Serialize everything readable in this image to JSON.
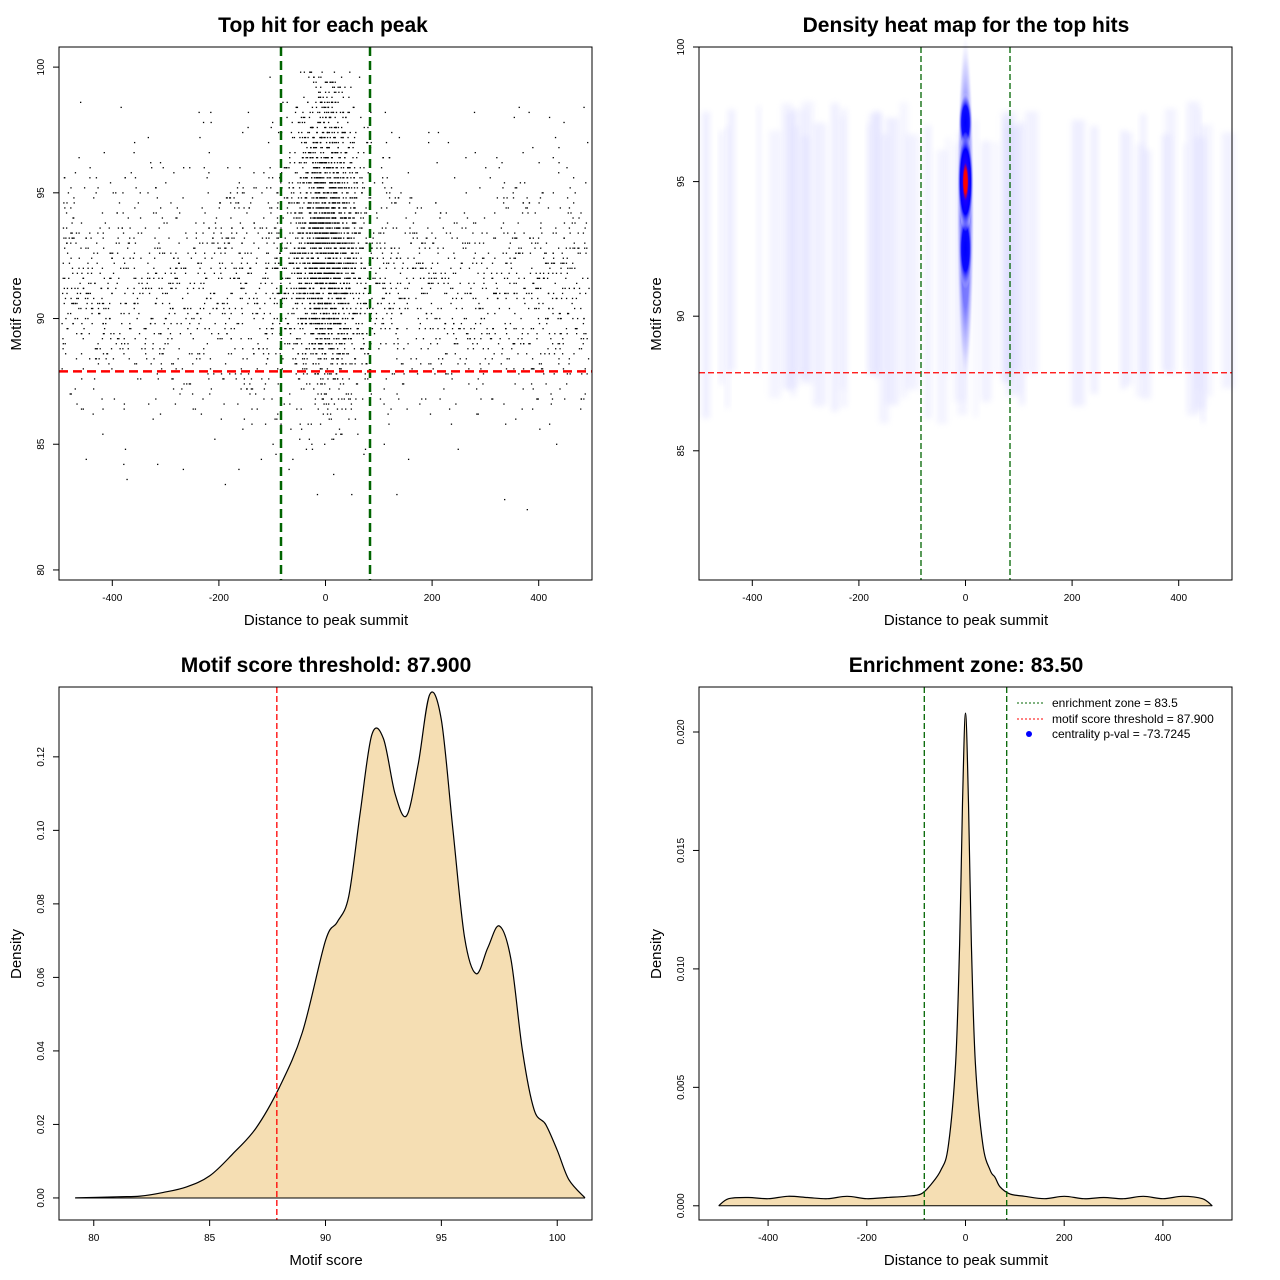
{
  "chart_data": [
    {
      "id": "scatter",
      "type": "scatter",
      "title": "Top hit for each peak",
      "xlabel": "Distance to peak summit",
      "ylabel": "Motif score",
      "xlim": [
        -500,
        500
      ],
      "ylim": [
        79.6,
        100.8
      ],
      "xticks": [
        -400,
        -200,
        0,
        200,
        400
      ],
      "yticks": [
        80,
        85,
        90,
        95,
        100
      ],
      "vlines": [
        -83.5,
        83.5
      ],
      "vline_color": "#006400",
      "hline": 87.9,
      "hline_color": "#ff0000",
      "point_color": "#000000",
      "description_of_points": "approx. 4000 peaks; dense central column within +/-60 bp spanning scores 83-100, sparse uniform background across -500..500 with scores 82-98"
    },
    {
      "id": "heatmap",
      "type": "heatmap",
      "title": "Density heat map for the top hits",
      "xlabel": "Distance to peak summit",
      "ylabel": "Motif score",
      "xlim": [
        -500,
        500
      ],
      "ylim": [
        80.2,
        100
      ],
      "xticks": [
        -400,
        -200,
        0,
        200,
        400
      ],
      "yticks": [
        85,
        90,
        95,
        100
      ],
      "vlines": [
        -83.5,
        83.5
      ],
      "vline_color": "#006400",
      "hline": 87.9,
      "hline_color": "#ff0000",
      "colors": [
        "#ffffff",
        "#0000ff",
        "#ff0000"
      ],
      "hotspot": {
        "x": 0,
        "y_center": 95,
        "y_range": [
          88,
          100
        ]
      }
    },
    {
      "id": "score_density",
      "type": "area",
      "title": "Motif score threshold: 87.900",
      "xlabel": "Motif score",
      "ylabel": "Density",
      "xlim": [
        78.5,
        101.5
      ],
      "ylim": [
        -0.006,
        0.139
      ],
      "xticks": [
        80,
        85,
        90,
        95,
        100
      ],
      "yticks": [
        0.0,
        0.02,
        0.04,
        0.06,
        0.08,
        0.1,
        0.12
      ],
      "ytick_labels": [
        "0.00",
        "0.02",
        "0.04",
        "0.06",
        "0.08",
        "0.10",
        "0.12"
      ],
      "vline": 87.9,
      "vline_color": "#ff0000",
      "fill": "#f5deb3",
      "x": [
        79.2,
        81,
        82,
        83,
        84,
        85,
        86,
        87,
        88,
        89,
        90,
        90.5,
        91,
        91.5,
        92,
        92.5,
        93,
        93.5,
        94,
        94.5,
        95,
        95.5,
        96,
        96.5,
        97,
        97.5,
        98,
        98.5,
        99,
        99.5,
        100,
        100.5,
        101.2
      ],
      "y": [
        0,
        0.0003,
        0.0005,
        0.0015,
        0.003,
        0.006,
        0.012,
        0.019,
        0.03,
        0.045,
        0.07,
        0.075,
        0.082,
        0.105,
        0.126,
        0.125,
        0.11,
        0.104,
        0.118,
        0.137,
        0.13,
        0.1,
        0.071,
        0.061,
        0.068,
        0.074,
        0.065,
        0.04,
        0.024,
        0.02,
        0.013,
        0.005,
        0
      ]
    },
    {
      "id": "distance_density",
      "type": "area",
      "title": "Enrichment zone: 83.50",
      "xlabel": "Distance to peak summit",
      "ylabel": "Density",
      "xlim": [
        -540,
        540
      ],
      "ylim": [
        -0.0006,
        0.0219
      ],
      "xticks": [
        -400,
        -200,
        0,
        200,
        400
      ],
      "yticks": [
        0.0,
        0.005,
        0.01,
        0.015,
        0.02
      ],
      "ytick_labels": [
        "0.000",
        "0.005",
        "0.010",
        "0.015",
        "0.020"
      ],
      "vlines": [
        -83.5,
        83.5
      ],
      "vline_color": "#006400",
      "fill": "#f5deb3",
      "x": [
        -500,
        -480,
        -440,
        -400,
        -360,
        -320,
        -280,
        -240,
        -200,
        -160,
        -120,
        -90,
        -70,
        -50,
        -35,
        -20,
        -12,
        -6,
        0,
        6,
        12,
        20,
        35,
        50,
        60,
        70,
        90,
        120,
        160,
        200,
        240,
        280,
        320,
        360,
        400,
        440,
        480,
        500
      ],
      "y": [
        0,
        0.0003,
        0.00035,
        0.0003,
        0.0004,
        0.00035,
        0.0003,
        0.0004,
        0.0003,
        0.00035,
        0.0004,
        0.0005,
        0.0009,
        0.0015,
        0.0025,
        0.006,
        0.011,
        0.017,
        0.0208,
        0.017,
        0.011,
        0.006,
        0.0026,
        0.0015,
        0.0012,
        0.0008,
        0.0005,
        0.0004,
        0.0003,
        0.0004,
        0.0003,
        0.00035,
        0.0003,
        0.0004,
        0.0003,
        0.0004,
        0.0003,
        0
      ],
      "legend": [
        {
          "label": "enrichment zone = 83.5",
          "color": "#006400",
          "style": "dotted"
        },
        {
          "label": "motif score threshold = 87.900",
          "color": "#ff0000",
          "style": "dotted"
        },
        {
          "label": "centrality p-val = -73.7245",
          "color": "#0000ff",
          "style": "point"
        }
      ],
      "legend_position": "top-right"
    }
  ]
}
